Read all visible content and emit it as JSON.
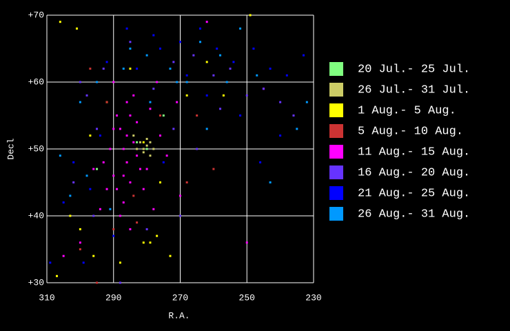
{
  "chart_data": {
    "type": "scatter",
    "x_label": "R.A.",
    "y_label": "Decl",
    "xlim": [
      310,
      230
    ],
    "xticks": [
      310,
      290,
      270,
      250,
      230
    ],
    "ylim": [
      30,
      70
    ],
    "yticks": [
      {
        "value": 30,
        "label": "+30"
      },
      {
        "value": 40,
        "label": "+40"
      },
      {
        "value": 50,
        "label": "+50"
      },
      {
        "value": 60,
        "label": "+60"
      },
      {
        "value": 70,
        "label": "+70"
      }
    ],
    "grid": true,
    "legend": "right",
    "series": [
      {
        "name": "20 Jul.- 25 Jul.",
        "color": "#80ff80",
        "x": [
          283,
          280,
          275,
          295
        ],
        "y": [
          51,
          50,
          55,
          47
        ]
      },
      {
        "name": "26 Jul.- 31 Jul.",
        "color": "#cccc66",
        "x": [
          282,
          281,
          280,
          279,
          281,
          283,
          280,
          278,
          284,
          279
        ],
        "y": [
          51,
          50,
          50.5,
          51,
          49.5,
          50,
          51.5,
          50,
          52,
          49
        ]
      },
      {
        "name": "1 Aug.- 5 Aug.",
        "color": "#ffff00",
        "x": [
          306,
          301,
          297,
          281,
          279,
          277,
          296,
          303,
          288,
          268,
          262,
          257,
          249,
          281,
          276,
          292,
          300,
          285,
          273,
          307
        ],
        "y": [
          69,
          68,
          52,
          36,
          36,
          37,
          34,
          40,
          33,
          58,
          63,
          58,
          70,
          51,
          45,
          57,
          38,
          62,
          34,
          31
        ]
      },
      {
        "name": "5 Aug.- 10 Aug.",
        "color": "#cc3333",
        "x": [
          297,
          290,
          284,
          268,
          260,
          300,
          292,
          276,
          283,
          295,
          265,
          286
        ],
        "y": [
          62,
          38,
          43,
          45,
          47,
          35,
          57,
          55,
          39,
          30,
          55,
          48
        ]
      },
      {
        "name": "11 Aug.- 15 Aug.",
        "color": "#ff00ff",
        "x": [
          288,
          287,
          286,
          290,
          285,
          284,
          289,
          287,
          283,
          291,
          286,
          282,
          288,
          285,
          290,
          284,
          279,
          276,
          274,
          281,
          293,
          289,
          286,
          283,
          280,
          292,
          294,
          287,
          285,
          296,
          270,
          278,
          305,
          300,
          277,
          271,
          245,
          250,
          262,
          290
        ],
        "y": [
          53,
          50,
          48,
          46,
          55,
          51,
          44,
          42,
          54,
          50,
          57,
          47,
          40,
          45,
          53,
          58,
          56,
          52,
          49,
          44,
          48,
          55,
          52,
          49,
          47,
          44,
          41,
          46,
          38,
          47,
          43,
          41,
          34,
          36,
          60,
          57,
          59,
          36,
          69,
          60
        ]
      },
      {
        "name": "16 Aug.- 20 Aug.",
        "color": "#6633ff",
        "x": [
          298,
          293,
          285,
          278,
          272,
          266,
          260,
          255,
          250,
          245,
          240,
          236,
          302,
          296,
          288,
          280,
          272,
          265,
          258,
          270,
          295,
          300
        ],
        "y": [
          58,
          62,
          66,
          59,
          63,
          64,
          61,
          62,
          58,
          59,
          57,
          55,
          45,
          40,
          30,
          38,
          53,
          50,
          56,
          40,
          53,
          60
        ]
      },
      {
        "name": "21 Aug.- 25 Aug.",
        "color": "#0000ff",
        "x": [
          292,
          286,
          276,
          270,
          264,
          259,
          254,
          248,
          243,
          238,
          233,
          305,
          302,
          297,
          294,
          283,
          278,
          268,
          262,
          252,
          246,
          240,
          299,
          290,
          275,
          309
        ],
        "y": [
          63,
          68,
          65,
          66,
          68,
          65,
          63,
          65,
          62,
          61,
          64,
          42,
          48,
          44,
          52,
          62,
          67,
          61,
          58,
          55,
          48,
          52,
          33,
          37,
          48,
          33
        ]
      },
      {
        "name": "26 Aug.- 31 Aug.",
        "color": "#0099ff",
        "x": [
          300,
          295,
          287,
          280,
          273,
          268,
          264,
          258,
          252,
          247,
          243,
          235,
          232,
          306,
          303,
          298,
          291,
          285,
          271,
          262,
          256,
          279
        ],
        "y": [
          57,
          60,
          62,
          64,
          62,
          60,
          66,
          64,
          68,
          61,
          45,
          53,
          57,
          49,
          43,
          46,
          41,
          65,
          60,
          53,
          60,
          57
        ]
      }
    ]
  }
}
